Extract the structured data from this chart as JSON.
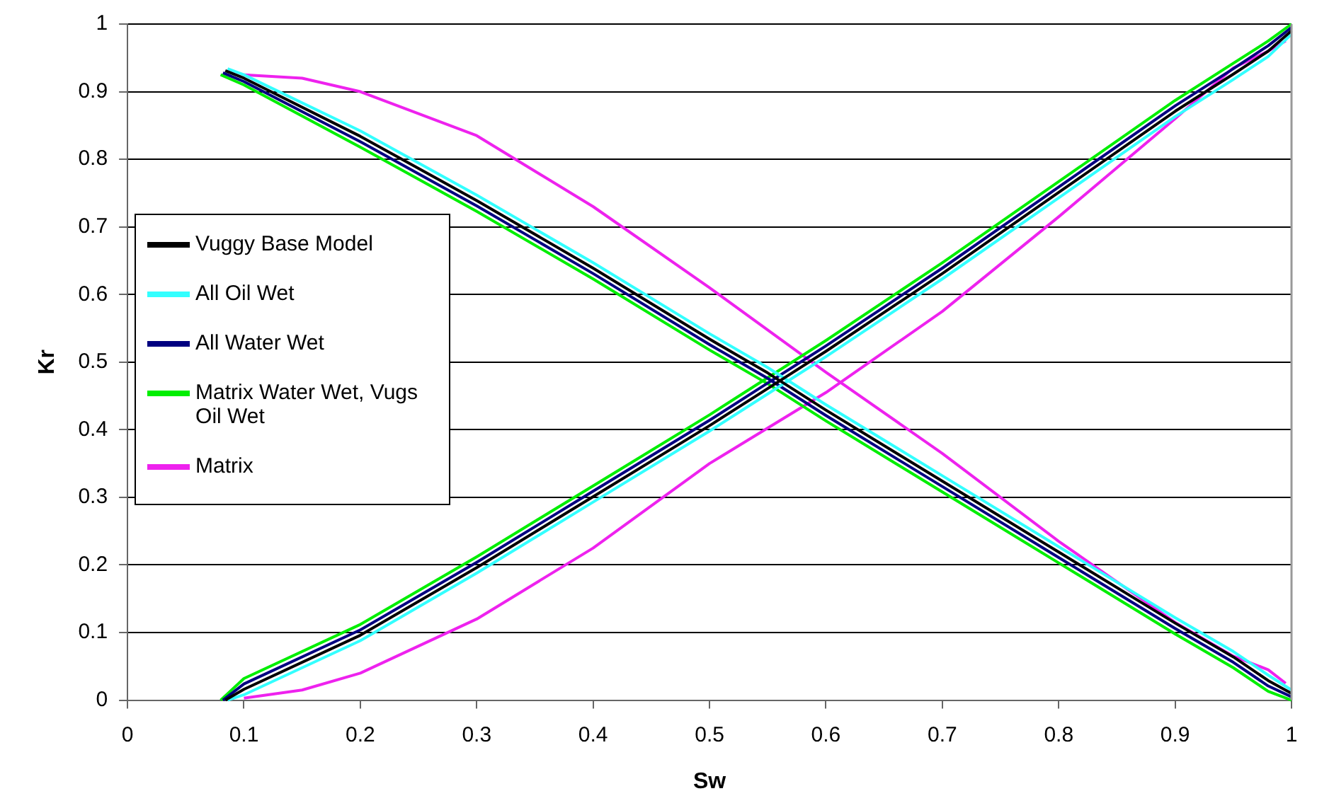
{
  "chart_data": {
    "type": "line",
    "xlabel": "Sw",
    "ylabel": "Kr",
    "xlim": [
      0,
      1
    ],
    "ylim": [
      0,
      1
    ],
    "xticks": [
      0,
      0.1,
      0.2,
      0.3,
      0.4,
      0.5,
      0.6,
      0.7,
      0.8,
      0.9,
      1
    ],
    "yticks": [
      0,
      0.1,
      0.2,
      0.3,
      0.4,
      0.5,
      0.6,
      0.7,
      0.8,
      0.9,
      1
    ],
    "grid": "y",
    "legend": "left",
    "marker": "none",
    "line_style": "solid",
    "series": [
      {
        "name": "Vuggy Base Model",
        "color": "#000000",
        "x": [
          0.084,
          0.1,
          0.2,
          0.3,
          0.4,
          0.5,
          0.55,
          0.6,
          0.7,
          0.8,
          0.9,
          0.95,
          0.98,
          1
        ],
        "values": [
          0,
          0.016,
          0.096,
          0.196,
          0.301,
          0.406,
          0.461,
          0.516,
          0.631,
          0.751,
          0.871,
          0.926,
          0.96,
          0.99
        ]
      },
      {
        "color": "#000000",
        "x": [
          0.084,
          0.1,
          0.2,
          0.3,
          0.4,
          0.5,
          0.55,
          0.6,
          0.7,
          0.8,
          0.9,
          0.95,
          0.98,
          1
        ],
        "values": [
          0.931,
          0.92,
          0.834,
          0.739,
          0.639,
          0.534,
          0.484,
          0.429,
          0.324,
          0.219,
          0.114,
          0.064,
          0.029,
          0.01
        ]
      },
      {
        "name": "All Oil Wet",
        "color": "#33ffff",
        "x": [
          0.086,
          0.1,
          0.2,
          0.3,
          0.4,
          0.5,
          0.55,
          0.6,
          0.7,
          0.8,
          0.9,
          0.95,
          0.98,
          1
        ],
        "values": [
          0,
          0.008,
          0.088,
          0.188,
          0.293,
          0.398,
          0.453,
          0.508,
          0.623,
          0.743,
          0.863,
          0.918,
          0.952,
          0.985
        ]
      },
      {
        "color": "#33ffff",
        "x": [
          0.086,
          0.1,
          0.2,
          0.3,
          0.4,
          0.5,
          0.55,
          0.6,
          0.7,
          0.8,
          0.9,
          0.95,
          0.98,
          1
        ],
        "values": [
          0.934,
          0.925,
          0.842,
          0.747,
          0.647,
          0.542,
          0.492,
          0.437,
          0.332,
          0.227,
          0.122,
          0.072,
          0.037,
          0.015
        ]
      },
      {
        "name": "All Water Wet",
        "color": "#000080",
        "x": [
          0.082,
          0.1,
          0.2,
          0.3,
          0.4,
          0.5,
          0.55,
          0.6,
          0.7,
          0.8,
          0.9,
          0.95,
          0.98,
          1
        ],
        "values": [
          0,
          0.024,
          0.104,
          0.204,
          0.309,
          0.414,
          0.469,
          0.524,
          0.639,
          0.759,
          0.879,
          0.934,
          0.968,
          0.995
        ]
      },
      {
        "color": "#000080",
        "x": [
          0.082,
          0.1,
          0.2,
          0.3,
          0.4,
          0.5,
          0.55,
          0.6,
          0.7,
          0.8,
          0.9,
          0.95,
          0.98,
          1
        ],
        "values": [
          0.928,
          0.915,
          0.826,
          0.731,
          0.631,
          0.526,
          0.476,
          0.421,
          0.316,
          0.211,
          0.106,
          0.056,
          0.021,
          0.005
        ]
      },
      {
        "name": "Matrix Water Wet, Vugs Oil Wet",
        "color": "#00ee00",
        "x": [
          0.08,
          0.1,
          0.2,
          0.3,
          0.4,
          0.5,
          0.55,
          0.6,
          0.7,
          0.8,
          0.9,
          0.95,
          0.98,
          1
        ],
        "values": [
          0,
          0.032,
          0.112,
          0.212,
          0.317,
          0.422,
          0.477,
          0.532,
          0.647,
          0.767,
          0.887,
          0.942,
          0.975,
          1
        ]
      },
      {
        "color": "#00ee00",
        "x": [
          0.08,
          0.1,
          0.2,
          0.3,
          0.4,
          0.5,
          0.55,
          0.6,
          0.7,
          0.8,
          0.9,
          0.95,
          0.98,
          1
        ],
        "values": [
          0.925,
          0.91,
          0.818,
          0.723,
          0.623,
          0.518,
          0.468,
          0.413,
          0.308,
          0.203,
          0.098,
          0.048,
          0.013,
          0
        ]
      },
      {
        "name": "Matrix",
        "color": "#ee22ee",
        "x": [
          0.1,
          0.15,
          0.2,
          0.3,
          0.4,
          0.5,
          0.6,
          0.7,
          0.8,
          0.9,
          0.95,
          0.98,
          0.995
        ],
        "values": [
          0.003,
          0.015,
          0.04,
          0.12,
          0.225,
          0.35,
          0.455,
          0.575,
          0.715,
          0.86,
          0.935,
          0.96,
          0.975
        ]
      },
      {
        "color": "#ee22ee",
        "x": [
          0.1,
          0.15,
          0.2,
          0.3,
          0.4,
          0.5,
          0.6,
          0.7,
          0.8,
          0.9,
          0.95,
          0.98,
          0.995
        ],
        "values": [
          0.925,
          0.92,
          0.9,
          0.835,
          0.73,
          0.61,
          0.485,
          0.365,
          0.235,
          0.115,
          0.065,
          0.045,
          0.025
        ]
      }
    ]
  }
}
